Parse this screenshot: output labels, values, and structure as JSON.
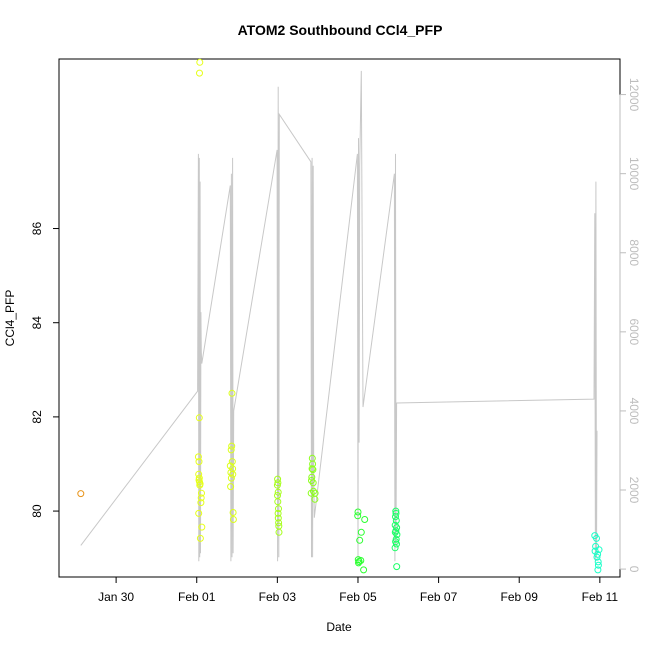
{
  "chart_data": {
    "type": "scatter",
    "title": "ATOM2 Southbound CCl4_PFP",
    "xlabel": "Date",
    "ylabel": "CCl4_PFP",
    "xlim": [
      "2017-01-28T14:00",
      "2017-02-11T12:00"
    ],
    "ylim": [
      78.6,
      89.6
    ],
    "y2lim": [
      -200,
      12900
    ],
    "x_ticks": [
      {
        "date": "2017-01-30",
        "label": "Jan 30"
      },
      {
        "date": "2017-02-01",
        "label": "Feb 01"
      },
      {
        "date": "2017-02-03",
        "label": "Feb 03"
      },
      {
        "date": "2017-02-05",
        "label": "Feb 05"
      },
      {
        "date": "2017-02-07",
        "label": "Feb 07"
      },
      {
        "date": "2017-02-09",
        "label": "Feb 09"
      },
      {
        "date": "2017-02-11",
        "label": "Feb 11"
      }
    ],
    "y_ticks": [
      {
        "value": 80,
        "label": "80"
      },
      {
        "value": 82,
        "label": "82"
      },
      {
        "value": 84,
        "label": "84"
      },
      {
        "value": 86,
        "label": "86"
      }
    ],
    "y2_ticks": [
      {
        "value": 0,
        "label": "0"
      },
      {
        "value": 2000,
        "label": "2000"
      },
      {
        "value": 4000,
        "label": "4000"
      },
      {
        "value": 6000,
        "label": "6000"
      },
      {
        "value": 8000,
        "label": "8000"
      },
      {
        "value": 10000,
        "label": "10000"
      },
      {
        "value": 12000,
        "label": "12000"
      }
    ],
    "grid": false,
    "points": [
      {
        "date": "2017-01-29T03:00",
        "value": 80.37,
        "color": "#e8941a"
      },
      {
        "date": "2017-02-01T01:50",
        "value": 89.53,
        "color": "#e6ff1a"
      },
      {
        "date": "2017-02-01T01:40",
        "value": 89.3,
        "color": "#e6ff1a"
      },
      {
        "date": "2017-02-01T01:30",
        "value": 81.98,
        "color": "#e6ff1a"
      },
      {
        "date": "2017-02-01T01:00",
        "value": 81.15,
        "color": "#e6ff1a"
      },
      {
        "date": "2017-02-01T01:20",
        "value": 81.05,
        "color": "#e6ff1a"
      },
      {
        "date": "2017-02-01T01:10",
        "value": 80.78,
        "color": "#e6ff1a"
      },
      {
        "date": "2017-02-01T01:30",
        "value": 80.7,
        "color": "#e6ff1a"
      },
      {
        "date": "2017-02-01T01:40",
        "value": 80.62,
        "color": "#e6ff1a"
      },
      {
        "date": "2017-02-01T01:50",
        "value": 80.55,
        "color": "#e6ff1a"
      },
      {
        "date": "2017-02-01T02:00",
        "value": 80.58,
        "color": "#e6ff1a"
      },
      {
        "date": "2017-02-01T01:20",
        "value": 80.66,
        "color": "#e6ff1a"
      },
      {
        "date": "2017-02-01T02:50",
        "value": 80.38,
        "color": "#e6ff1a"
      },
      {
        "date": "2017-02-01T02:40",
        "value": 80.28,
        "color": "#e6ff1a"
      },
      {
        "date": "2017-02-01T02:30",
        "value": 80.18,
        "color": "#e6ff1a"
      },
      {
        "date": "2017-02-01T01:10",
        "value": 79.95,
        "color": "#e6ff1a"
      },
      {
        "date": "2017-02-01T03:00",
        "value": 79.66,
        "color": "#e6ff1a"
      },
      {
        "date": "2017-02-01T02:10",
        "value": 79.42,
        "color": "#e6ff1a"
      },
      {
        "date": "2017-02-01T21:00",
        "value": 82.5,
        "color": "#dcff1a"
      },
      {
        "date": "2017-02-01T20:50",
        "value": 81.38,
        "color": "#dcff1a"
      },
      {
        "date": "2017-02-01T20:30",
        "value": 81.3,
        "color": "#dcff1a"
      },
      {
        "date": "2017-02-01T21:10",
        "value": 81.05,
        "color": "#dcff1a"
      },
      {
        "date": "2017-02-01T20:00",
        "value": 80.96,
        "color": "#dcff1a"
      },
      {
        "date": "2017-02-01T21:20",
        "value": 80.9,
        "color": "#dcff1a"
      },
      {
        "date": "2017-02-01T20:20",
        "value": 80.82,
        "color": "#dcff1a"
      },
      {
        "date": "2017-02-01T21:30",
        "value": 80.78,
        "color": "#dcff1a"
      },
      {
        "date": "2017-02-01T20:40",
        "value": 80.7,
        "color": "#dcff1a"
      },
      {
        "date": "2017-02-01T20:10",
        "value": 80.52,
        "color": "#dcff1a"
      },
      {
        "date": "2017-02-01T21:40",
        "value": 79.97,
        "color": "#dcff1a"
      },
      {
        "date": "2017-02-01T21:50",
        "value": 79.82,
        "color": "#dcff1a"
      },
      {
        "date": "2017-02-03T00:10",
        "value": 80.68,
        "color": "#a6ff1a"
      },
      {
        "date": "2017-02-03T00:20",
        "value": 80.6,
        "color": "#a6ff1a"
      },
      {
        "date": "2017-02-03T00:00",
        "value": 80.55,
        "color": "#a6ff1a"
      },
      {
        "date": "2017-02-03T00:30",
        "value": 80.4,
        "color": "#a6ff1a"
      },
      {
        "date": "2017-02-03T00:05",
        "value": 80.33,
        "color": "#a6ff1a"
      },
      {
        "date": "2017-02-03T00:15",
        "value": 80.2,
        "color": "#a6ff1a"
      },
      {
        "date": "2017-02-03T00:40",
        "value": 80.05,
        "color": "#a6ff1a"
      },
      {
        "date": "2017-02-03T00:25",
        "value": 79.95,
        "color": "#a6ff1a"
      },
      {
        "date": "2017-02-03T00:35",
        "value": 79.85,
        "color": "#a6ff1a"
      },
      {
        "date": "2017-02-03T00:45",
        "value": 79.75,
        "color": "#a6ff1a"
      },
      {
        "date": "2017-02-03T00:50",
        "value": 79.68,
        "color": "#a6ff1a"
      },
      {
        "date": "2017-02-03T01:00",
        "value": 79.55,
        "color": "#a6ff1a"
      },
      {
        "date": "2017-02-03T20:50",
        "value": 81.12,
        "color": "#8cff1a"
      },
      {
        "date": "2017-02-03T21:00",
        "value": 81.0,
        "color": "#8cff1a"
      },
      {
        "date": "2017-02-03T20:40",
        "value": 80.9,
        "color": "#8cff1a"
      },
      {
        "date": "2017-02-03T21:10",
        "value": 80.88,
        "color": "#8cff1a"
      },
      {
        "date": "2017-02-03T20:30",
        "value": 80.72,
        "color": "#8cff1a"
      },
      {
        "date": "2017-02-03T20:20",
        "value": 80.65,
        "color": "#8cff1a"
      },
      {
        "date": "2017-02-03T21:20",
        "value": 80.6,
        "color": "#8cff1a"
      },
      {
        "date": "2017-02-03T21:30",
        "value": 80.42,
        "color": "#8cff1a"
      },
      {
        "date": "2017-02-03T20:10",
        "value": 80.38,
        "color": "#8cff1a"
      },
      {
        "date": "2017-02-03T22:30",
        "value": 80.38,
        "color": "#8cff1a"
      },
      {
        "date": "2017-02-03T22:20",
        "value": 80.25,
        "color": "#8cff1a"
      },
      {
        "date": "2017-02-05T00:00",
        "value": 79.98,
        "color": "#2bff30"
      },
      {
        "date": "2017-02-04T23:50",
        "value": 79.9,
        "color": "#2bff30"
      },
      {
        "date": "2017-02-05T04:00",
        "value": 79.82,
        "color": "#2bff30"
      },
      {
        "date": "2017-02-05T02:00",
        "value": 79.55,
        "color": "#2bff30"
      },
      {
        "date": "2017-02-05T01:00",
        "value": 79.38,
        "color": "#2bff30"
      },
      {
        "date": "2017-02-05T00:10",
        "value": 78.97,
        "color": "#2bff30"
      },
      {
        "date": "2017-02-05T00:40",
        "value": 78.93,
        "color": "#2bff30"
      },
      {
        "date": "2017-02-05T00:20",
        "value": 78.9,
        "color": "#2bff30"
      },
      {
        "date": "2017-02-05T01:40",
        "value": 78.95,
        "color": "#2bff30"
      },
      {
        "date": "2017-02-05T03:20",
        "value": 78.75,
        "color": "#2bff30"
      },
      {
        "date": "2017-02-05T22:30",
        "value": 80.0,
        "color": "#1aff66"
      },
      {
        "date": "2017-02-05T22:40",
        "value": 79.95,
        "color": "#1aff66"
      },
      {
        "date": "2017-02-05T22:20",
        "value": 79.88,
        "color": "#1aff66"
      },
      {
        "date": "2017-02-05T22:50",
        "value": 79.8,
        "color": "#1aff66"
      },
      {
        "date": "2017-02-05T22:10",
        "value": 79.7,
        "color": "#1aff66"
      },
      {
        "date": "2017-02-05T23:00",
        "value": 79.65,
        "color": "#1aff66"
      },
      {
        "date": "2017-02-05T22:35",
        "value": 79.58,
        "color": "#1aff66"
      },
      {
        "date": "2017-02-05T22:15",
        "value": 79.55,
        "color": "#1aff66"
      },
      {
        "date": "2017-02-05T23:10",
        "value": 79.5,
        "color": "#1aff66"
      },
      {
        "date": "2017-02-05T22:45",
        "value": 79.4,
        "color": "#1aff66"
      },
      {
        "date": "2017-02-05T22:25",
        "value": 79.35,
        "color": "#1aff66"
      },
      {
        "date": "2017-02-05T22:55",
        "value": 79.3,
        "color": "#1aff66"
      },
      {
        "date": "2017-02-05T22:05",
        "value": 79.22,
        "color": "#1aff66"
      },
      {
        "date": "2017-02-05T23:05",
        "value": 78.82,
        "color": "#1aff66"
      },
      {
        "date": "2017-02-10T21:00",
        "value": 79.48,
        "color": "#1affc8"
      },
      {
        "date": "2017-02-10T22:00",
        "value": 79.42,
        "color": "#1affc8"
      },
      {
        "date": "2017-02-10T21:30",
        "value": 79.25,
        "color": "#1affc8"
      },
      {
        "date": "2017-02-10T23:30",
        "value": 79.18,
        "color": "#1affc8"
      },
      {
        "date": "2017-02-10T21:10",
        "value": 79.15,
        "color": "#1affc8"
      },
      {
        "date": "2017-02-10T22:40",
        "value": 79.08,
        "color": "#1affc8"
      },
      {
        "date": "2017-02-10T22:20",
        "value": 79.02,
        "color": "#1affc8"
      },
      {
        "date": "2017-02-10T23:00",
        "value": 78.92,
        "color": "#1affc8"
      },
      {
        "date": "2017-02-10T23:10",
        "value": 78.85,
        "color": "#1affc8"
      },
      {
        "date": "2017-02-10T22:50",
        "value": 78.75,
        "color": "#1affc8"
      }
    ],
    "altitude_series": {
      "axis": "right",
      "color": "#c8c8c8",
      "points": [
        [
          "2017-01-29T03:00",
          600
        ],
        [
          "2017-02-01T00:30",
          4500
        ],
        [
          "2017-02-01T01:00",
          10500
        ],
        [
          "2017-02-01T01:15",
          200
        ],
        [
          "2017-02-01T01:30",
          10400
        ],
        [
          "2017-02-01T01:45",
          300
        ],
        [
          "2017-02-01T02:00",
          9800
        ],
        [
          "2017-02-01T02:15",
          400
        ],
        [
          "2017-02-01T02:30",
          6500
        ],
        [
          "2017-02-01T02:45",
          5500
        ],
        [
          "2017-02-01T03:00",
          5200
        ],
        [
          "2017-02-01T20:00",
          9700
        ],
        [
          "2017-02-01T20:20",
          200
        ],
        [
          "2017-02-01T20:40",
          10000
        ],
        [
          "2017-02-01T21:00",
          300
        ],
        [
          "2017-02-01T21:20",
          10400
        ],
        [
          "2017-02-01T21:40",
          400
        ],
        [
          "2017-02-01T22:00",
          4000
        ],
        [
          "2017-02-02T23:50",
          10600
        ],
        [
          "2017-02-03T00:10",
          200
        ],
        [
          "2017-02-03T00:30",
          12200
        ],
        [
          "2017-02-03T00:50",
          300
        ],
        [
          "2017-02-03T01:10",
          11500
        ],
        [
          "2017-02-03T20:00",
          10300
        ],
        [
          "2017-02-03T20:20",
          300
        ],
        [
          "2017-02-03T20:40",
          10400
        ],
        [
          "2017-02-03T21:00",
          300
        ],
        [
          "2017-02-03T21:20",
          10200
        ],
        [
          "2017-02-03T21:40",
          2500
        ],
        [
          "2017-02-03T22:00",
          1300
        ],
        [
          "2017-02-04T23:40",
          10500
        ],
        [
          "2017-02-05T00:00",
          200
        ],
        [
          "2017-02-05T00:20",
          10900
        ],
        [
          "2017-02-05T00:40",
          3200
        ],
        [
          "2017-02-05T01:00",
          10200
        ],
        [
          "2017-02-05T02:00",
          12600
        ],
        [
          "2017-02-05T03:00",
          4100
        ],
        [
          "2017-02-05T21:40",
          10000
        ],
        [
          "2017-02-05T22:00",
          200
        ],
        [
          "2017-02-05T22:20",
          10500
        ],
        [
          "2017-02-05T22:40",
          600
        ],
        [
          "2017-02-05T23:00",
          4200
        ],
        [
          "2017-02-10T20:30",
          4300
        ],
        [
          "2017-02-10T21:00",
          9000
        ],
        [
          "2017-02-10T21:20",
          200
        ],
        [
          "2017-02-10T21:40",
          9800
        ],
        [
          "2017-02-10T22:00",
          300
        ],
        [
          "2017-02-10T22:20",
          3500
        ]
      ]
    }
  }
}
